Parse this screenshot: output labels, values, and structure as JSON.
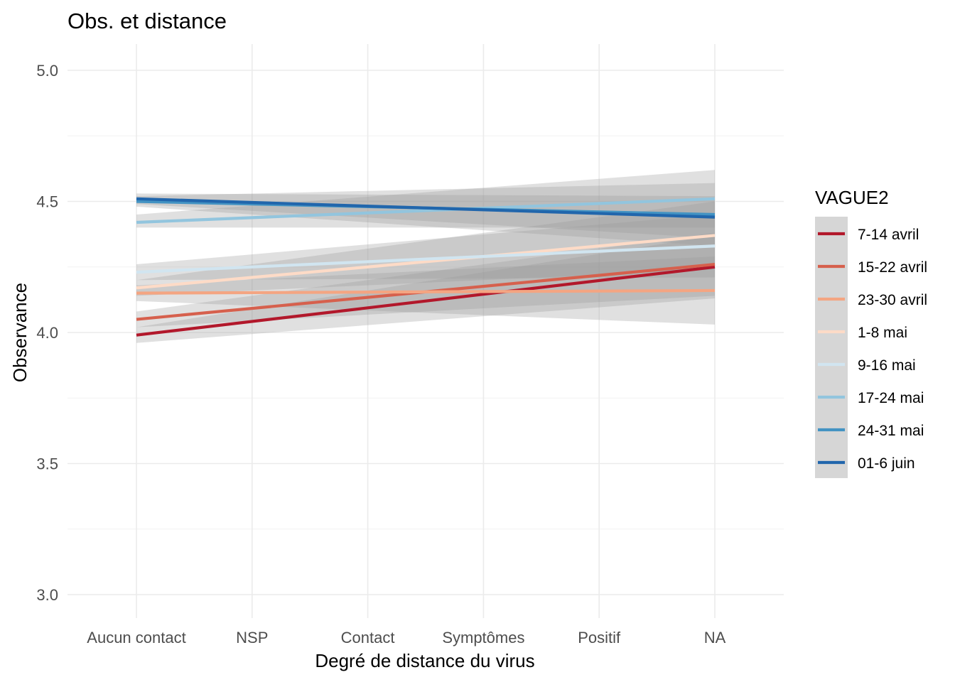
{
  "chart_data": {
    "type": "line",
    "title": "Obs. et distance",
    "xlabel": "Degré de distance du virus",
    "ylabel": "Observance",
    "categories": [
      "Aucun contact",
      "NSP",
      "Contact",
      "Symptômes",
      "Positif",
      "NA"
    ],
    "ylim": [
      2.9,
      5.1
    ],
    "yticks": [
      3.0,
      3.5,
      4.0,
      4.5,
      5.0
    ],
    "ytick_labels": [
      "3.0",
      "3.5",
      "4.0",
      "4.5",
      "5.0"
    ],
    "grid": true,
    "legend": {
      "title": "VAGUE2",
      "position": "right"
    },
    "series": [
      {
        "name": "7-14 avril",
        "color": "#b2182b",
        "start": 3.99,
        "end": 4.25,
        "ci_start": [
          3.96,
          4.02
        ],
        "ci_end": [
          4.13,
          4.37
        ]
      },
      {
        "name": "15-22 avril",
        "color": "#d6604d",
        "start": 4.05,
        "end": 4.26,
        "ci_start": [
          4.02,
          4.08
        ],
        "ci_end": [
          4.14,
          4.38
        ]
      },
      {
        "name": "23-30 avril",
        "color": "#f4a582",
        "start": 4.15,
        "end": 4.16,
        "ci_start": [
          4.12,
          4.18
        ],
        "ci_end": [
          4.03,
          4.29
        ]
      },
      {
        "name": "1-8 mai",
        "color": "#fddbc7",
        "start": 4.17,
        "end": 4.37,
        "ci_start": [
          4.14,
          4.2
        ],
        "ci_end": [
          4.24,
          4.5
        ]
      },
      {
        "name": "9-16 mai",
        "color": "#d1e5f0",
        "start": 4.23,
        "end": 4.33,
        "ci_start": [
          4.2,
          4.26
        ],
        "ci_end": [
          4.21,
          4.45
        ]
      },
      {
        "name": "17-24 mai",
        "color": "#92c5de",
        "start": 4.42,
        "end": 4.51,
        "ci_start": [
          4.4,
          4.45
        ],
        "ci_end": [
          4.4,
          4.62
        ]
      },
      {
        "name": "24-31 mai",
        "color": "#4393c3",
        "start": 4.5,
        "end": 4.45,
        "ci_start": [
          4.48,
          4.52
        ],
        "ci_end": [
          4.33,
          4.57
        ]
      },
      {
        "name": "01-6 juin",
        "color": "#2166ac",
        "start": 4.51,
        "end": 4.44,
        "ci_start": [
          4.49,
          4.53
        ],
        "ci_end": [
          4.36,
          4.52
        ]
      }
    ]
  }
}
